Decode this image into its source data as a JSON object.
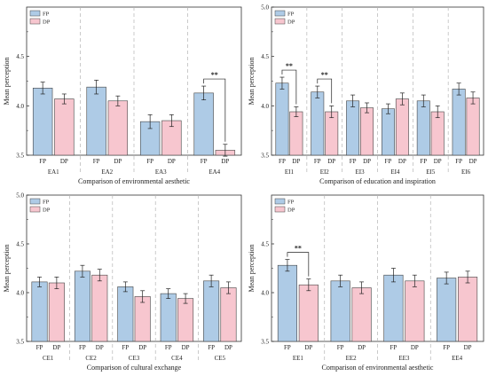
{
  "colors": {
    "FP": "#aecbe6",
    "DP": "#f7c6cf",
    "edge": "#444444",
    "divider": "#b5b5b5"
  },
  "chart_data": [
    {
      "type": "bar",
      "xlabel": "Comparison of environmental aesthetic",
      "ylabel": "Mean perception",
      "ylim": [
        3.5,
        5.0
      ],
      "yticks": [
        "3.5",
        "4.0",
        "4.5"
      ],
      "categories": [
        "EA1",
        "EA2",
        "EA3",
        "EA4"
      ],
      "bar_labels": [
        "FP",
        "DP"
      ],
      "legend": [
        "FP",
        "DP"
      ],
      "legend_position": "top-left",
      "series": [
        {
          "name": "FP",
          "values": [
            4.18,
            4.19,
            3.84,
            4.13
          ],
          "errors": [
            0.06,
            0.07,
            0.07,
            0.07
          ]
        },
        {
          "name": "DP",
          "values": [
            4.07,
            4.05,
            3.85,
            3.55
          ],
          "errors": [
            0.05,
            0.05,
            0.06,
            0.06
          ]
        }
      ],
      "significance": [
        {
          "category": 3,
          "label": "**"
        }
      ]
    },
    {
      "type": "bar",
      "xlabel": "Comparison of education and inspiration",
      "ylabel": "Mean perception",
      "ylim": [
        3.5,
        5.0
      ],
      "yticks": [
        "3.5",
        "4.0",
        "4.5",
        "5.0"
      ],
      "categories": [
        "EI1",
        "EI2",
        "EI3",
        "EI4",
        "EI5",
        "EI6"
      ],
      "bar_labels": [
        "FP",
        "DP"
      ],
      "legend": [
        "FP",
        "DP"
      ],
      "legend_position": "top-left",
      "series": [
        {
          "name": "FP",
          "values": [
            4.23,
            4.14,
            4.05,
            3.97,
            4.05,
            4.17
          ],
          "errors": [
            0.06,
            0.06,
            0.06,
            0.05,
            0.06,
            0.06
          ]
        },
        {
          "name": "DP",
          "values": [
            3.94,
            3.94,
            3.98,
            4.07,
            3.94,
            4.08
          ],
          "errors": [
            0.05,
            0.06,
            0.05,
            0.06,
            0.06,
            0.06
          ]
        }
      ],
      "significance": [
        {
          "category": 0,
          "label": "**"
        },
        {
          "category": 1,
          "label": "**"
        }
      ]
    },
    {
      "type": "bar",
      "xlabel": "Comparison of cultural exchange",
      "ylabel": "Mean perception",
      "ylim": [
        3.5,
        5.0
      ],
      "yticks": [
        "3.5",
        "4.0",
        "4.5",
        "5.0"
      ],
      "categories": [
        "CE1",
        "CE2",
        "CE3",
        "CE4",
        "CE5"
      ],
      "bar_labels": [
        "FP",
        "DP"
      ],
      "legend": [
        "FP",
        "DP"
      ],
      "legend_position": "top-left",
      "series": [
        {
          "name": "FP",
          "values": [
            4.11,
            4.22,
            4.06,
            3.99,
            4.12
          ],
          "errors": [
            0.05,
            0.06,
            0.05,
            0.05,
            0.06
          ]
        },
        {
          "name": "DP",
          "values": [
            4.1,
            4.18,
            3.96,
            3.94,
            4.05
          ],
          "errors": [
            0.06,
            0.06,
            0.06,
            0.05,
            0.06
          ]
        }
      ],
      "significance": []
    },
    {
      "type": "bar",
      "xlabel": "Comparison of environmental aesthetic",
      "ylabel": "Mean perception",
      "ylim": [
        3.5,
        5.0
      ],
      "yticks": [
        "3.5",
        "4.0",
        "4.5"
      ],
      "categories": [
        "EE1",
        "EE2",
        "EE3",
        "EE4"
      ],
      "bar_labels": [
        "FP",
        "DP"
      ],
      "legend": [
        "FP",
        "DP"
      ],
      "legend_position": "top-left",
      "series": [
        {
          "name": "FP",
          "values": [
            4.28,
            4.12,
            4.18,
            4.15
          ],
          "errors": [
            0.06,
            0.06,
            0.07,
            0.06
          ]
        },
        {
          "name": "DP",
          "values": [
            4.08,
            4.05,
            4.12,
            4.16
          ],
          "errors": [
            0.06,
            0.06,
            0.06,
            0.06
          ]
        }
      ],
      "significance": [
        {
          "category": 0,
          "label": "**"
        }
      ]
    }
  ]
}
